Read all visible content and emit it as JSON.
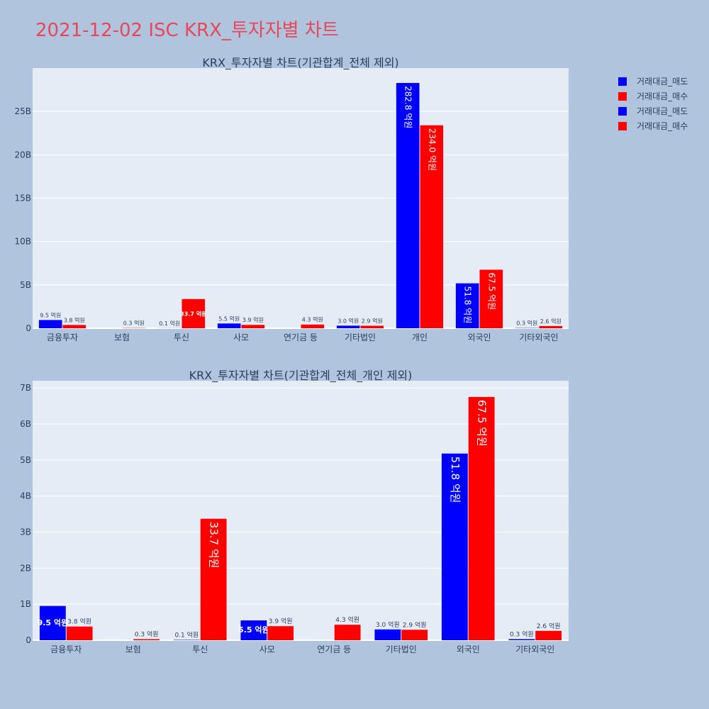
{
  "title": "2021-12-02 ISC KRX_투자자별 차트",
  "colors": {
    "sell": "#0000ff",
    "buy": "#ff0000",
    "plot_bg": "#e5ecf6",
    "page_bg": "#b0c4de",
    "title": "#e8475a",
    "text": "#2a3f5f"
  },
  "legend": [
    {
      "label": "거래대금_매도",
      "color": "#0000ff"
    },
    {
      "label": "거래대금_매수",
      "color": "#ff0000"
    },
    {
      "label": "거래대금_매도",
      "color": "#0000ff"
    },
    {
      "label": "거래대금_매수",
      "color": "#ff0000"
    }
  ],
  "chart_data": [
    {
      "type": "bar",
      "title": "KRX_투자자별 차트(기관합계_전체 제외)",
      "categories": [
        "금융투자",
        "보험",
        "투신",
        "사모",
        "연기금 등",
        "기타법인",
        "개인",
        "외국인",
        "기타외국인"
      ],
      "ylim": [
        0,
        30000000000
      ],
      "yticks": [
        0,
        5000000000,
        10000000000,
        15000000000,
        20000000000,
        25000000000
      ],
      "ytick_labels": [
        "0",
        "5B",
        "10B",
        "15B",
        "20B",
        "25B"
      ],
      "series": [
        {
          "name": "거래대금_매도",
          "color": "#0000ff",
          "values": [
            950000000,
            0,
            10000000,
            550000000,
            0,
            300000000,
            28280000000,
            5180000000,
            30000000
          ],
          "labels": [
            "9.5 억원",
            "",
            "0.1 억원",
            "5.5 억원",
            "",
            "3.0 억원",
            "282.8 억원",
            "51.8 억원",
            "0.3 억원"
          ]
        },
        {
          "name": "거래대금_매수",
          "color": "#ff0000",
          "values": [
            380000000,
            30000000,
            3370000000,
            390000000,
            430000000,
            290000000,
            23400000000,
            6750000000,
            260000000
          ],
          "labels": [
            "3.8 억원",
            "0.3 억원",
            "33.7 억원",
            "3.9 억원",
            "4.3 억원",
            "2.9 억원",
            "234.0 억원",
            "67.5 억원",
            "2.6 억원"
          ]
        }
      ]
    },
    {
      "type": "bar",
      "title": "KRX_투자자별 차트(기관합계_전체_개인 제외)",
      "categories": [
        "금융투자",
        "보험",
        "투신",
        "사모",
        "연기금 등",
        "기타법인",
        "외국인",
        "기타외국인"
      ],
      "ylim": [
        0,
        7200000000
      ],
      "yticks": [
        0,
        1000000000,
        2000000000,
        3000000000,
        4000000000,
        5000000000,
        6000000000,
        7000000000
      ],
      "ytick_labels": [
        "0",
        "1B",
        "2B",
        "3B",
        "4B",
        "5B",
        "6B",
        "7B"
      ],
      "series": [
        {
          "name": "거래대금_매도",
          "color": "#0000ff",
          "values": [
            950000000,
            0,
            10000000,
            550000000,
            0,
            300000000,
            5180000000,
            30000000
          ],
          "labels": [
            "9.5 억원",
            "",
            "0.1 억원",
            "5.5 억원",
            "",
            "3.0 억원",
            "51.8 억원",
            "0.3 억원"
          ]
        },
        {
          "name": "거래대금_매수",
          "color": "#ff0000",
          "values": [
            380000000,
            30000000,
            3370000000,
            390000000,
            430000000,
            290000000,
            6750000000,
            260000000
          ],
          "labels": [
            "3.8 억원",
            "0.3 억원",
            "33.7 억원",
            "3.9 억원",
            "4.3 억원",
            "2.9 억원",
            "67.5 억원",
            "2.6 억원"
          ]
        }
      ]
    }
  ]
}
